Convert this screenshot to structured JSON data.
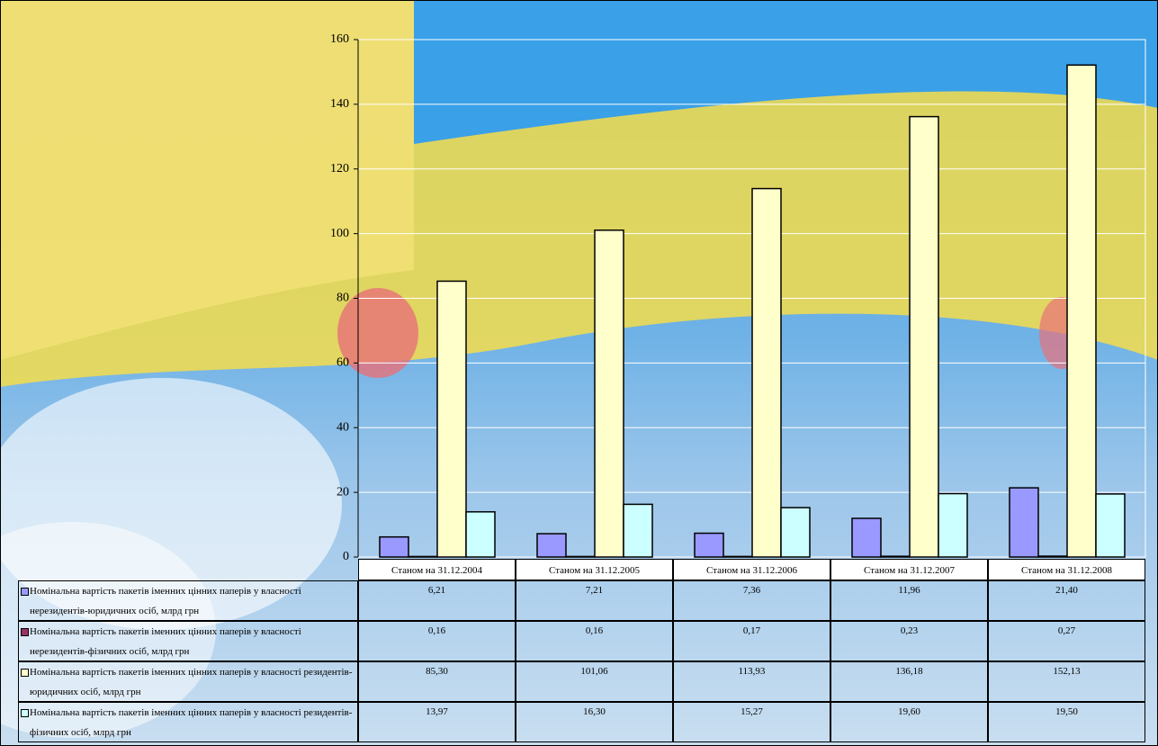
{
  "chart_data": {
    "type": "bar",
    "categories": [
      "Станом на 31.12.2004",
      "Станом на 31.12.2005",
      "Станом на 31.12.2006",
      "Станом на 31.12.2007",
      "Станом на 31.12.2008"
    ],
    "series": [
      {
        "name": "Номінальна вартість пакетів іменних цінних паперів у власності нерезидентів-юридичних осіб, млрд грн",
        "color": "#9999ff",
        "values": [
          6.21,
          7.21,
          7.36,
          11.96,
          21.4
        ],
        "value_labels": [
          "6,21",
          "7,21",
          "7,36",
          "11,96",
          "21,40"
        ]
      },
      {
        "name": "Номінальна вартість пакетів іменних цінних паперів у власності нерезидентів-фізичних осіб, млрд грн",
        "color": "#993366",
        "values": [
          0.16,
          0.16,
          0.17,
          0.23,
          0.27
        ],
        "value_labels": [
          "0,16",
          "0,16",
          "0,17",
          "0,23",
          "0,27"
        ]
      },
      {
        "name": "Номінальна вартість пакетів іменних цінних паперів у власності резидентів-юридичних осіб, млрд грн",
        "color": "#ffffcc",
        "values": [
          85.3,
          101.06,
          113.93,
          136.18,
          152.13
        ],
        "value_labels": [
          "85,30",
          "101,06",
          "113,93",
          "136,18",
          "152,13"
        ]
      },
      {
        "name": "Номінальна вартість пакетів іменних цінних паперів у власності резидентів-фізичних осіб, млрд грн",
        "color": "#ccffff",
        "values": [
          13.97,
          16.3,
          15.27,
          19.6,
          19.5
        ],
        "value_labels": [
          "13,97",
          "16,30",
          "15,27",
          "19,60",
          "19,50"
        ]
      }
    ],
    "ylim": [
      0,
      160
    ],
    "yticks": [
      0,
      20,
      40,
      60,
      80,
      100,
      120,
      140,
      160
    ],
    "grid": true
  }
}
